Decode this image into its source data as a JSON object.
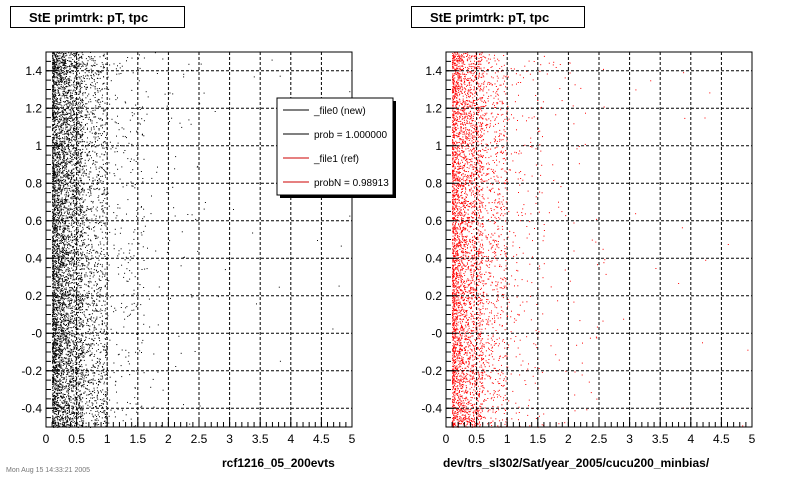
{
  "left_panel": {
    "title": "StE primtrk: pT, tpc",
    "xlabel": "rcf1216_05_200evts"
  },
  "right_panel": {
    "title": "StE primtrk: pT, tpc",
    "xlabel": "dev/trs_sl302/Sat/year_2005/cucu200_minbias/"
  },
  "legend": {
    "entries": [
      {
        "label": "_file0 (new)",
        "color": "#000000"
      },
      {
        "label": "prob = 1.000000",
        "color": "#000000"
      },
      {
        "label": "_file1 (ref)",
        "color": "#cc0000"
      },
      {
        "label": "probN = 0.98913",
        "color": "#cc0000"
      }
    ]
  },
  "bottom_note": "Mon Aug 15 14:33:21 2005",
  "chart_data": [
    {
      "type": "scatter",
      "title": "StE primtrk: pT, tpc",
      "xlabel": "rcf1216_05_200evts",
      "ylabel": "",
      "xlim": [
        0,
        5
      ],
      "ylim": [
        -0.5,
        1.5
      ],
      "x_ticks": [
        "0",
        "0.5",
        "1",
        "1.5",
        "2",
        "2.5",
        "3",
        "3.5",
        "4",
        "4.5",
        "5"
      ],
      "y_ticks": [
        "-0.4",
        "-0.2",
        "-0",
        "0.2",
        "0.4",
        "0.6",
        "0.8",
        "1",
        "1.2",
        "1.4"
      ],
      "grid": true,
      "series": [
        {
          "name": "_file0 (new)",
          "color": "#000000",
          "density": [
            {
              "x_range": [
                0.1,
                0.6
              ],
              "count": 5200
            },
            {
              "x_range": [
                0.6,
                1.0
              ],
              "count": 1100
            },
            {
              "x_range": [
                1.0,
                1.6
              ],
              "count": 260
            },
            {
              "x_range": [
                1.6,
                2.6
              ],
              "count": 80
            },
            {
              "x_range": [
                2.6,
                5.0
              ],
              "count": 20
            }
          ]
        }
      ],
      "legend_position": "top-right"
    },
    {
      "type": "scatter",
      "title": "StE primtrk: pT, tpc",
      "xlabel": "dev/trs_sl302/Sat/year_2005/cucu200_minbias/",
      "ylabel": "",
      "xlim": [
        0,
        5
      ],
      "ylim": [
        -0.5,
        1.5
      ],
      "x_ticks": [
        "0",
        "0.5",
        "1",
        "1.5",
        "2",
        "2.5",
        "3",
        "3.5",
        "4",
        "4.5",
        "5"
      ],
      "y_ticks": [
        "-0.4",
        "-0.2",
        "-0",
        "0.2",
        "0.4",
        "0.6",
        "0.8",
        "1",
        "1.2",
        "1.4"
      ],
      "grid": true,
      "series": [
        {
          "name": "_file1 (ref)",
          "color": "#ff0000",
          "density": [
            {
              "x_range": [
                0.1,
                0.6
              ],
              "count": 3800
            },
            {
              "x_range": [
                0.6,
                1.0
              ],
              "count": 700
            },
            {
              "x_range": [
                1.0,
                1.6
              ],
              "count": 200
            },
            {
              "x_range": [
                1.6,
                2.6
              ],
              "count": 70
            },
            {
              "x_range": [
                2.6,
                5.0
              ],
              "count": 18
            }
          ]
        }
      ]
    }
  ]
}
